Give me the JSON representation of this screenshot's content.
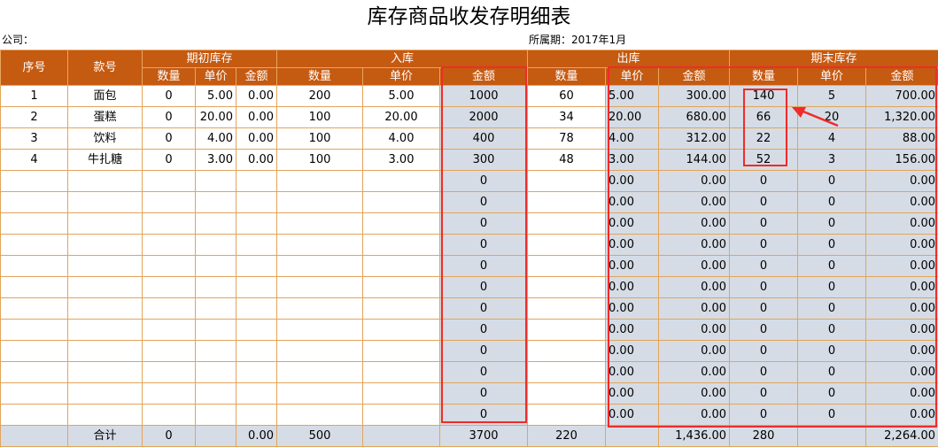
{
  "title": "库存商品收发存明细表",
  "company_label": "公司：",
  "period_label": "所属期：2017年1月",
  "headers": {
    "seq": "序号",
    "item": "款号",
    "opening": "期初库存",
    "inbound": "入库",
    "outbound": "出库",
    "closing": "期末库存",
    "qty": "数量",
    "price": "单价",
    "amount": "金额"
  },
  "rows": [
    {
      "seq": "1",
      "item": "面包",
      "o_qty": "0",
      "o_price": "5.00",
      "o_amt": "0.00",
      "i_qty": "200",
      "i_price": "5.00",
      "i_amt": "1000",
      "out_qty": "60",
      "out_price": "5.00",
      "out_amt": "300.00",
      "c_qty": "140",
      "c_price": "5",
      "c_amt": "700.00"
    },
    {
      "seq": "2",
      "item": "蛋糕",
      "o_qty": "0",
      "o_price": "20.00",
      "o_amt": "0.00",
      "i_qty": "100",
      "i_price": "20.00",
      "i_amt": "2000",
      "out_qty": "34",
      "out_price": "20.00",
      "out_amt": "680.00",
      "c_qty": "66",
      "c_price": "20",
      "c_amt": "1,320.00"
    },
    {
      "seq": "3",
      "item": "饮料",
      "o_qty": "0",
      "o_price": "4.00",
      "o_amt": "0.00",
      "i_qty": "100",
      "i_price": "4.00",
      "i_amt": "400",
      "out_qty": "78",
      "out_price": "4.00",
      "out_amt": "312.00",
      "c_qty": "22",
      "c_price": "4",
      "c_amt": "88.00"
    },
    {
      "seq": "4",
      "item": "牛扎糖",
      "o_qty": "0",
      "o_price": "3.00",
      "o_amt": "0.00",
      "i_qty": "100",
      "i_price": "3.00",
      "i_amt": "300",
      "out_qty": "48",
      "out_price": "3.00",
      "out_amt": "144.00",
      "c_qty": "52",
      "c_price": "3",
      "c_amt": "156.00"
    },
    {
      "seq": "",
      "item": "",
      "o_qty": "",
      "o_price": "",
      "o_amt": "",
      "i_qty": "",
      "i_price": "",
      "i_amt": "0",
      "out_qty": "",
      "out_price": "0.00",
      "out_amt": "0.00",
      "c_qty": "0",
      "c_price": "0",
      "c_amt": "0.00"
    },
    {
      "seq": "",
      "item": "",
      "o_qty": "",
      "o_price": "",
      "o_amt": "",
      "i_qty": "",
      "i_price": "",
      "i_amt": "0",
      "out_qty": "",
      "out_price": "0.00",
      "out_amt": "0.00",
      "c_qty": "0",
      "c_price": "0",
      "c_amt": "0.00"
    },
    {
      "seq": "",
      "item": "",
      "o_qty": "",
      "o_price": "",
      "o_amt": "",
      "i_qty": "",
      "i_price": "",
      "i_amt": "0",
      "out_qty": "",
      "out_price": "0.00",
      "out_amt": "0.00",
      "c_qty": "0",
      "c_price": "0",
      "c_amt": "0.00"
    },
    {
      "seq": "",
      "item": "",
      "o_qty": "",
      "o_price": "",
      "o_amt": "",
      "i_qty": "",
      "i_price": "",
      "i_amt": "0",
      "out_qty": "",
      "out_price": "0.00",
      "out_amt": "0.00",
      "c_qty": "0",
      "c_price": "0",
      "c_amt": "0.00"
    },
    {
      "seq": "",
      "item": "",
      "o_qty": "",
      "o_price": "",
      "o_amt": "",
      "i_qty": "",
      "i_price": "",
      "i_amt": "0",
      "out_qty": "",
      "out_price": "0.00",
      "out_amt": "0.00",
      "c_qty": "0",
      "c_price": "0",
      "c_amt": "0.00"
    },
    {
      "seq": "",
      "item": "",
      "o_qty": "",
      "o_price": "",
      "o_amt": "",
      "i_qty": "",
      "i_price": "",
      "i_amt": "0",
      "out_qty": "",
      "out_price": "0.00",
      "out_amt": "0.00",
      "c_qty": "0",
      "c_price": "0",
      "c_amt": "0.00"
    },
    {
      "seq": "",
      "item": "",
      "o_qty": "",
      "o_price": "",
      "o_amt": "",
      "i_qty": "",
      "i_price": "",
      "i_amt": "0",
      "out_qty": "",
      "out_price": "0.00",
      "out_amt": "0.00",
      "c_qty": "0",
      "c_price": "0",
      "c_amt": "0.00"
    },
    {
      "seq": "",
      "item": "",
      "o_qty": "",
      "o_price": "",
      "o_amt": "",
      "i_qty": "",
      "i_price": "",
      "i_amt": "0",
      "out_qty": "",
      "out_price": "0.00",
      "out_amt": "0.00",
      "c_qty": "0",
      "c_price": "0",
      "c_amt": "0.00"
    },
    {
      "seq": "",
      "item": "",
      "o_qty": "",
      "o_price": "",
      "o_amt": "",
      "i_qty": "",
      "i_price": "",
      "i_amt": "0",
      "out_qty": "",
      "out_price": "0.00",
      "out_amt": "0.00",
      "c_qty": "0",
      "c_price": "0",
      "c_amt": "0.00"
    },
    {
      "seq": "",
      "item": "",
      "o_qty": "",
      "o_price": "",
      "o_amt": "",
      "i_qty": "",
      "i_price": "",
      "i_amt": "0",
      "out_qty": "",
      "out_price": "0.00",
      "out_amt": "0.00",
      "c_qty": "0",
      "c_price": "0",
      "c_amt": "0.00"
    },
    {
      "seq": "",
      "item": "",
      "o_qty": "",
      "o_price": "",
      "o_amt": "",
      "i_qty": "",
      "i_price": "",
      "i_amt": "0",
      "out_qty": "",
      "out_price": "0.00",
      "out_amt": "0.00",
      "c_qty": "0",
      "c_price": "0",
      "c_amt": "0.00"
    },
    {
      "seq": "",
      "item": "",
      "o_qty": "",
      "o_price": "",
      "o_amt": "",
      "i_qty": "",
      "i_price": "",
      "i_amt": "0",
      "out_qty": "",
      "out_price": "0.00",
      "out_amt": "0.00",
      "c_qty": "0",
      "c_price": "0",
      "c_amt": "0.00"
    }
  ],
  "total": {
    "label": "合计",
    "o_qty": "0",
    "o_price": "",
    "o_amt": "0.00",
    "i_qty": "500",
    "i_price": "",
    "i_amt": "3700",
    "out_qty": "220",
    "out_price": "",
    "out_amt": "1,436.00",
    "c_qty": "280",
    "c_price": "",
    "c_amt": "2,264.00"
  },
  "colors": {
    "header": "#c55a11",
    "grid": "#e2a45a",
    "shade": "#d6dce5",
    "highlight": "#ef2b2b"
  }
}
